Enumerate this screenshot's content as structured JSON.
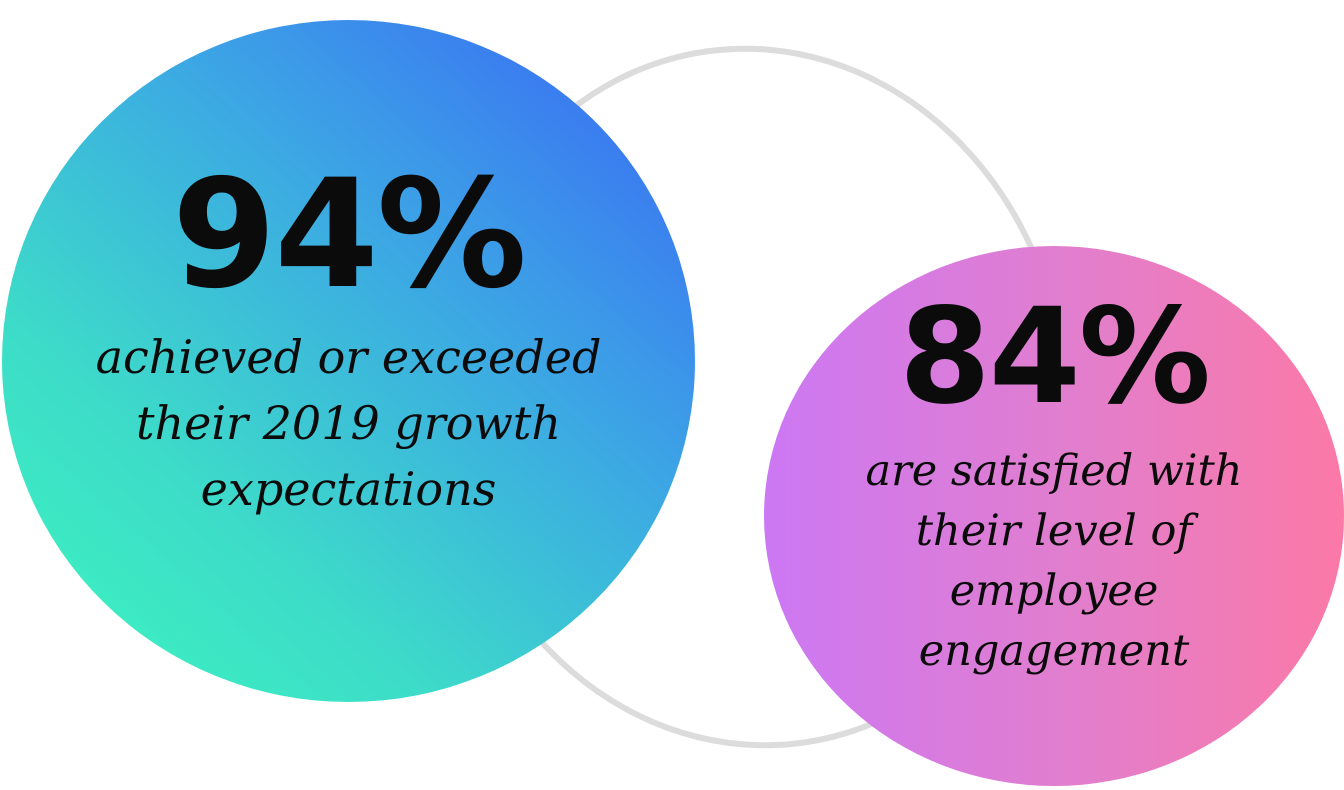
{
  "stats": [
    {
      "value": "94%",
      "description": "achieved or exceeded\ntheir 2019 growth\nexpectations",
      "gradient": [
        "#3cf9bd",
        "#3a63f7"
      ]
    },
    {
      "value": "84%",
      "description": "are satisfied with\ntheir level of\nemployee\nengagement",
      "gradient": [
        "#cc78f4",
        "#fb79a6"
      ]
    }
  ],
  "colors": {
    "ring": "#dcdcdc",
    "text": "#0b0b0b",
    "background": "#ffffff"
  }
}
